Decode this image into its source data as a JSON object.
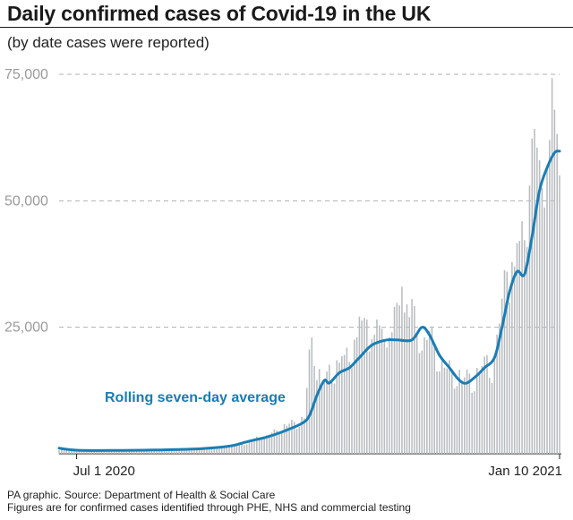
{
  "header": {
    "title": "Daily confirmed cases of Covid-19 in the UK",
    "subtitle": "(by date cases were reported)"
  },
  "footer": {
    "source": "PA graphic. Source: Department of Health & Social Care",
    "note": "Figures are for confirmed cases identified through PHE, NHS and commercial testing"
  },
  "colors": {
    "bars": "#b8bcbf",
    "average_line": "#1a7db5",
    "grid": "#b0b0b0"
  },
  "chart_data": {
    "type": "bar",
    "title": "Daily confirmed cases of Covid-19 in the UK",
    "subtitle": "(by date cases were reported)",
    "x_range": [
      "2020-06-24",
      "2021-01-10"
    ],
    "ylim": [
      0,
      75000
    ],
    "yticks": [
      {
        "value": 25000,
        "label": "25,000"
      },
      {
        "value": 50000,
        "label": "50,000"
      },
      {
        "value": 75000,
        "label": "75,000"
      }
    ],
    "xticks": [
      {
        "date": "2020-07-01",
        "label": "Jul 1 2020"
      },
      {
        "date": "2021-01-10",
        "label": "Jan 10 2021"
      }
    ],
    "grid": "horizontal dashed",
    "annotation": "Rolling seven-day average",
    "series": [
      {
        "kind": "bar",
        "daily_points": [
          [
            "2020-06-24",
            650
          ],
          [
            "2020-07-08",
            600
          ],
          [
            "2020-07-22",
            700
          ],
          [
            "2020-08-05",
            900
          ],
          [
            "2020-08-19",
            1100
          ],
          [
            "2020-09-02",
            1500
          ],
          [
            "2020-09-09",
            2500
          ],
          [
            "2020-09-16",
            3800
          ],
          [
            "2020-09-23",
            5500
          ],
          [
            "2020-09-30",
            7000
          ],
          [
            "2020-10-03",
            23000
          ],
          [
            "2020-10-07",
            14000
          ],
          [
            "2020-10-14",
            18000
          ],
          [
            "2020-10-21",
            23000
          ],
          [
            "2020-10-25",
            26500
          ],
          [
            "2020-10-28",
            23500
          ],
          [
            "2020-11-04",
            24000
          ],
          [
            "2020-11-08",
            33000
          ],
          [
            "2020-11-11",
            27000
          ],
          [
            "2020-11-18",
            22500
          ],
          [
            "2020-11-25",
            17000
          ],
          [
            "2020-12-02",
            14500
          ],
          [
            "2020-12-09",
            16000
          ],
          [
            "2020-12-15",
            18500
          ],
          [
            "2020-12-20",
            36000
          ],
          [
            "2020-12-23",
            37000
          ],
          [
            "2020-12-29",
            53000
          ],
          [
            "2021-01-02",
            58000
          ],
          [
            "2021-01-06",
            62000
          ],
          [
            "2021-01-08",
            68000
          ],
          [
            "2021-01-10",
            55000
          ]
        ]
      },
      {
        "kind": "line",
        "points": [
          [
            "2020-06-24",
            1100
          ],
          [
            "2020-07-01",
            700
          ],
          [
            "2020-07-15",
            650
          ],
          [
            "2020-08-01",
            750
          ],
          [
            "2020-08-15",
            900
          ],
          [
            "2020-08-25",
            1200
          ],
          [
            "2020-09-01",
            1600
          ],
          [
            "2020-09-08",
            2500
          ],
          [
            "2020-09-15",
            3300
          ],
          [
            "2020-09-22",
            4500
          ],
          [
            "2020-09-29",
            6000
          ],
          [
            "2020-10-02",
            7500
          ],
          [
            "2020-10-05",
            11500
          ],
          [
            "2020-10-08",
            14500
          ],
          [
            "2020-10-10",
            14000
          ],
          [
            "2020-10-14",
            16000
          ],
          [
            "2020-10-18",
            17000
          ],
          [
            "2020-10-22",
            19000
          ],
          [
            "2020-10-27",
            21500
          ],
          [
            "2020-11-02",
            22500
          ],
          [
            "2020-11-06",
            22500
          ],
          [
            "2020-11-12",
            22500
          ],
          [
            "2020-11-16",
            25000
          ],
          [
            "2020-11-19",
            23500
          ],
          [
            "2020-11-23",
            19500
          ],
          [
            "2020-11-27",
            17000
          ],
          [
            "2020-12-01",
            14500
          ],
          [
            "2020-12-04",
            14000
          ],
          [
            "2020-12-08",
            15500
          ],
          [
            "2020-12-11",
            17000
          ],
          [
            "2020-12-15",
            19000
          ],
          [
            "2020-12-18",
            25000
          ],
          [
            "2020-12-21",
            32000
          ],
          [
            "2020-12-24",
            36000
          ],
          [
            "2020-12-27",
            35500
          ],
          [
            "2020-12-30",
            43000
          ],
          [
            "2021-01-02",
            52000
          ],
          [
            "2021-01-05",
            56500
          ],
          [
            "2021-01-08",
            59500
          ],
          [
            "2021-01-10",
            59800
          ]
        ]
      }
    ]
  }
}
